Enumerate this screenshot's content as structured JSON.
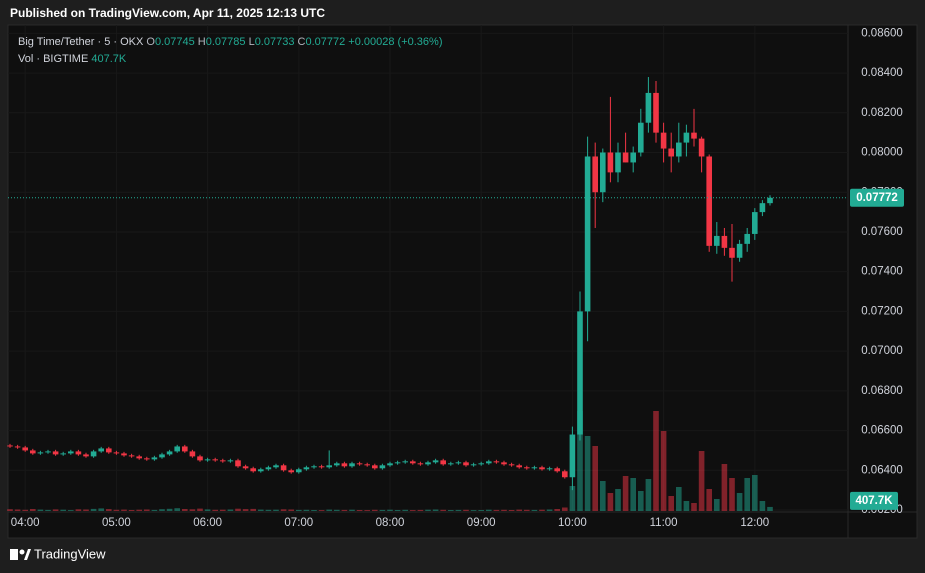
{
  "header": {
    "published": "Published on TradingView.com, Apr 11, 2025 12:13 UTC"
  },
  "footer": {
    "brand": "TradingView"
  },
  "chart_data": {
    "type": "candlestick",
    "symbol": "Big Time/Tether · 5 · OKX",
    "ohlc_labels": [
      "O",
      "H",
      "L",
      "C"
    ],
    "change": "+0.00028 (+0.36%)",
    "volume_title": "Vol · BIGTIME",
    "volume_last_label": "407.7K",
    "up_color": "#22ab94",
    "down_color": "#f23645",
    "ylim": [
      0.06195,
      0.08642
    ],
    "vlim": [
      0,
      11000000
    ],
    "yticks": [
      {
        "value": 0.086,
        "label": "0.08600"
      },
      {
        "value": 0.084,
        "label": "0.08400"
      },
      {
        "value": 0.082,
        "label": "0.08200"
      },
      {
        "value": 0.08,
        "label": "0.08000"
      },
      {
        "value": 0.078,
        "label": "0.07800"
      },
      {
        "value": 0.076,
        "label": "0.07600"
      },
      {
        "value": 0.074,
        "label": "0.07400"
      },
      {
        "value": 0.072,
        "label": "0.07200"
      },
      {
        "value": 0.07,
        "label": "0.07000"
      },
      {
        "value": 0.068,
        "label": "0.06800"
      },
      {
        "value": 0.066,
        "label": "0.06600"
      },
      {
        "value": 0.064,
        "label": "0.06400"
      },
      {
        "value": 0.062,
        "label": "0.06200"
      }
    ],
    "categories": [
      null,
      null,
      "04:00",
      null,
      null,
      null,
      null,
      null,
      null,
      null,
      null,
      null,
      null,
      null,
      "05:00",
      null,
      null,
      null,
      null,
      null,
      null,
      null,
      null,
      null,
      null,
      null,
      "06:00",
      null,
      null,
      null,
      null,
      null,
      null,
      null,
      null,
      null,
      null,
      null,
      "07:00",
      null,
      null,
      null,
      null,
      null,
      null,
      null,
      null,
      null,
      null,
      null,
      "08:00",
      null,
      null,
      null,
      null,
      null,
      null,
      null,
      null,
      null,
      null,
      null,
      "09:00",
      null,
      null,
      null,
      null,
      null,
      null,
      null,
      null,
      null,
      null,
      null,
      "10:00",
      null,
      null,
      null,
      null,
      null,
      null,
      null,
      null,
      null,
      null,
      null,
      "11:00",
      null,
      null,
      null,
      null,
      null,
      null,
      null,
      null,
      null,
      null,
      null,
      "12:00",
      null,
      null
    ],
    "open": [
      0.06525,
      0.0652,
      0.06515,
      0.065,
      0.06485,
      0.0649,
      0.06495,
      0.0648,
      0.06485,
      0.06495,
      0.0648,
      0.0647,
      0.06495,
      0.0651,
      0.0649,
      0.06485,
      0.06475,
      0.0647,
      0.0646,
      0.06455,
      0.06465,
      0.0648,
      0.06495,
      0.0652,
      0.06495,
      0.0647,
      0.0645,
      0.06455,
      0.0645,
      0.06445,
      0.0645,
      0.0642,
      0.0641,
      0.06395,
      0.06405,
      0.06415,
      0.06425,
      0.064,
      0.0639,
      0.06405,
      0.06415,
      0.0642,
      0.06415,
      0.06425,
      0.06435,
      0.0642,
      0.06435,
      0.0643,
      0.06425,
      0.0641,
      0.06425,
      0.06435,
      0.0644,
      0.06445,
      0.06435,
      0.0643,
      0.0644,
      0.0645,
      0.0643,
      0.06435,
      0.0644,
      0.06425,
      0.0643,
      0.06435,
      0.06445,
      0.0644,
      0.0643,
      0.06425,
      0.06415,
      0.0641,
      0.06415,
      0.06405,
      0.0641,
      0.06395,
      0.06365,
      0.0658,
      0.072,
      0.0798,
      0.078,
      0.08,
      0.079,
      0.08,
      0.0795,
      0.08,
      0.0815,
      0.083,
      0.081,
      0.0802,
      0.0798,
      0.0805,
      0.081,
      0.0807,
      0.0798,
      0.0753,
      0.0758,
      0.0752,
      0.0747,
      0.0754,
      0.0759,
      0.077,
      0.07745
    ],
    "high": [
      0.06533,
      0.06528,
      0.06523,
      0.06508,
      0.06498,
      0.06503,
      0.06503,
      0.06493,
      0.06503,
      0.06503,
      0.06488,
      0.06503,
      0.06518,
      0.06518,
      0.06498,
      0.06493,
      0.06483,
      0.06478,
      0.06468,
      0.06473,
      0.06488,
      0.06503,
      0.06528,
      0.06528,
      0.06503,
      0.06478,
      0.06463,
      0.06463,
      0.06458,
      0.06458,
      0.06458,
      0.06428,
      0.06418,
      0.06413,
      0.06423,
      0.06433,
      0.06433,
      0.06408,
      0.06413,
      0.06423,
      0.06428,
      0.06428,
      0.065,
      0.06443,
      0.06443,
      0.06443,
      0.06443,
      0.06438,
      0.06433,
      0.06433,
      0.06443,
      0.06448,
      0.06453,
      0.06453,
      0.06443,
      0.06448,
      0.06458,
      0.06458,
      0.06443,
      0.06448,
      0.06448,
      0.06438,
      0.06443,
      0.06453,
      0.06453,
      0.06448,
      0.06438,
      0.06433,
      0.06423,
      0.06423,
      0.06423,
      0.06418,
      0.06418,
      0.06403,
      0.0662,
      0.073,
      0.0808,
      0.0805,
      0.0802,
      0.0828,
      0.0805,
      0.081,
      0.0803,
      0.0822,
      0.0838,
      0.0836,
      0.0815,
      0.081,
      0.0815,
      0.0814,
      0.0822,
      0.0808,
      0.0799,
      0.0765,
      0.0762,
      0.0764,
      0.0756,
      0.0762,
      0.0772,
      0.0776,
      0.07785
    ],
    "low": [
      0.06513,
      0.06508,
      0.06493,
      0.06478,
      0.06478,
      0.06483,
      0.06473,
      0.06473,
      0.06478,
      0.06473,
      0.06463,
      0.06463,
      0.06488,
      0.06483,
      0.06478,
      0.06468,
      0.06463,
      0.06453,
      0.06448,
      0.06448,
      0.06458,
      0.06473,
      0.06488,
      0.06488,
      0.06463,
      0.06443,
      0.06443,
      0.06443,
      0.06438,
      0.06438,
      0.06413,
      0.06403,
      0.06388,
      0.06388,
      0.06398,
      0.06408,
      0.06393,
      0.06383,
      0.06383,
      0.06398,
      0.06408,
      0.06408,
      0.06408,
      0.06418,
      0.06413,
      0.06413,
      0.06423,
      0.06418,
      0.06403,
      0.06403,
      0.06418,
      0.06428,
      0.06433,
      0.06428,
      0.06423,
      0.06423,
      0.06433,
      0.06423,
      0.06423,
      0.06428,
      0.06418,
      0.06418,
      0.06423,
      0.06428,
      0.06433,
      0.06423,
      0.06418,
      0.06408,
      0.06403,
      0.06403,
      0.06398,
      0.06398,
      0.06388,
      0.06358,
      0.063,
      0.0655,
      0.0705,
      0.0762,
      0.0775,
      0.0785,
      0.0785,
      0.0795,
      0.079,
      0.0798,
      0.081,
      0.0805,
      0.0795,
      0.079,
      0.0795,
      0.0798,
      0.0803,
      0.079,
      0.075,
      0.0749,
      0.0748,
      0.0735,
      0.0745,
      0.075,
      0.0756,
      0.0768,
      0.07733
    ],
    "close": [
      0.0652,
      0.06515,
      0.065,
      0.06485,
      0.0649,
      0.06495,
      0.0648,
      0.06485,
      0.06495,
      0.0648,
      0.0647,
      0.06495,
      0.0651,
      0.0649,
      0.06485,
      0.06475,
      0.0647,
      0.0646,
      0.06455,
      0.06465,
      0.0648,
      0.06495,
      0.0652,
      0.06495,
      0.0647,
      0.0645,
      0.06455,
      0.0645,
      0.06445,
      0.0645,
      0.0642,
      0.0641,
      0.06395,
      0.06405,
      0.06415,
      0.06425,
      0.064,
      0.0639,
      0.06405,
      0.06415,
      0.0642,
      0.06415,
      0.06425,
      0.06435,
      0.0642,
      0.06435,
      0.0643,
      0.06425,
      0.0641,
      0.06425,
      0.06435,
      0.0644,
      0.06445,
      0.06435,
      0.0643,
      0.0644,
      0.0645,
      0.0643,
      0.06435,
      0.0644,
      0.06425,
      0.0643,
      0.06435,
      0.06445,
      0.0644,
      0.0643,
      0.06425,
      0.06415,
      0.0641,
      0.06415,
      0.06405,
      0.0641,
      0.06395,
      0.06365,
      0.0658,
      0.072,
      0.0798,
      0.078,
      0.08,
      0.079,
      0.08,
      0.0795,
      0.08,
      0.0815,
      0.083,
      0.081,
      0.0802,
      0.0798,
      0.0805,
      0.081,
      0.0807,
      0.0798,
      0.0753,
      0.0758,
      0.0752,
      0.0747,
      0.0754,
      0.0759,
      0.077,
      0.07745,
      0.07772
    ],
    "volume": [
      180000,
      150000,
      120000,
      200000,
      140000,
      110000,
      160000,
      130000,
      90000,
      170000,
      150000,
      210000,
      260000,
      190000,
      120000,
      140000,
      100000,
      130000,
      150000,
      110000,
      180000,
      220000,
      280000,
      200000,
      170000,
      240000,
      160000,
      120000,
      130000,
      150000,
      230000,
      190000,
      210000,
      140000,
      120000,
      130000,
      170000,
      150000,
      110000,
      120000,
      100000,
      90000,
      140000,
      120000,
      110000,
      130000,
      100000,
      90000,
      120000,
      110000,
      130000,
      100000,
      120000,
      90000,
      110000,
      130000,
      150000,
      120000,
      100000,
      110000,
      120000,
      90000,
      100000,
      130000,
      110000,
      120000,
      100000,
      140000,
      120000,
      110000,
      130000,
      150000,
      200000,
      350000,
      2500000,
      10000000,
      7500000,
      6500000,
      3000000,
      1800000,
      2200000,
      3500000,
      3300000,
      2000000,
      3200000,
      10000000,
      8000000,
      1500000,
      2400000,
      1000000,
      800000,
      6000000,
      2200000,
      1200000,
      4700000,
      3300000,
      1800000,
      3300000,
      3600000,
      1000000,
      407700
    ]
  }
}
